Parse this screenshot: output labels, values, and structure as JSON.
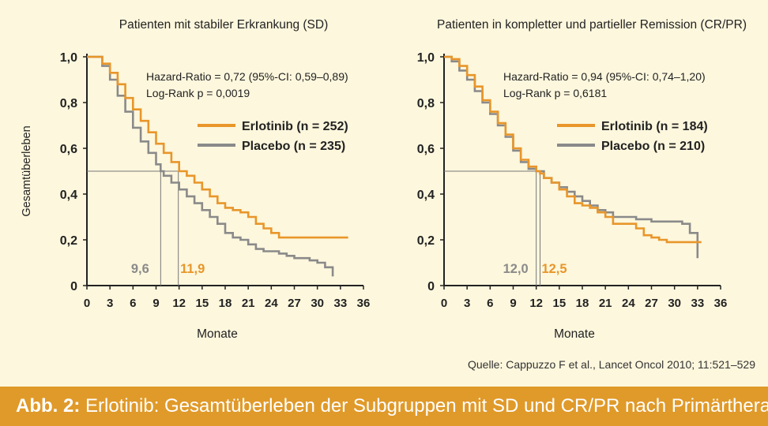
{
  "figure": {
    "caption_label": "Abb. 2:",
    "caption_text": "Erlotinib: Gesamtüberleben der Subgruppen mit SD und CR/PR nach Primärtherapie",
    "source": "Quelle: Cappuzzo F et al., Lancet Oncol 2010; 11:521–529"
  },
  "colors": {
    "erlotinib": "#e8962a",
    "placebo": "#8a8a8a",
    "caption_bg": "#e09a2a",
    "background": "#fdf7dd"
  },
  "chart_data": [
    {
      "type": "line",
      "title": "Patienten mit stabiler Erkrankung (SD)",
      "xlabel": "Monate",
      "ylabel": "Gesamtüberleben",
      "xlim": [
        0,
        36
      ],
      "ylim": [
        0,
        1.0
      ],
      "xticks": [
        "0",
        "3",
        "6",
        "9",
        "12",
        "15",
        "18",
        "21",
        "24",
        "27",
        "30",
        "33",
        "36"
      ],
      "yticks": [
        "0",
        "0,2",
        "0,4",
        "0,6",
        "0,8",
        "1,0"
      ],
      "annotations": [
        "Hazard-Ratio = 0,72 (95%-CI: 0,59–0,89)",
        "Log-Rank p = 0,0019"
      ],
      "legend_position": "top-right",
      "medians": [
        {
          "label": "9,6",
          "x": 9.6,
          "series": "placebo"
        },
        {
          "label": "11,9",
          "x": 11.9,
          "series": "erlotinib"
        }
      ],
      "series": [
        {
          "key": "erlotinib",
          "name": "Erlotinib (n = 252)",
          "points": [
            [
              0,
              1.0
            ],
            [
              1,
              1.0
            ],
            [
              2,
              0.97
            ],
            [
              3,
              0.93
            ],
            [
              4,
              0.88
            ],
            [
              5,
              0.82
            ],
            [
              6,
              0.77
            ],
            [
              7,
              0.72
            ],
            [
              8,
              0.67
            ],
            [
              9,
              0.62
            ],
            [
              10,
              0.58
            ],
            [
              11,
              0.54
            ],
            [
              12,
              0.5
            ],
            [
              13,
              0.48
            ],
            [
              14,
              0.45
            ],
            [
              15,
              0.42
            ],
            [
              16,
              0.39
            ],
            [
              17,
              0.36
            ],
            [
              18,
              0.34
            ],
            [
              19,
              0.33
            ],
            [
              20,
              0.32
            ],
            [
              21,
              0.3
            ],
            [
              22,
              0.27
            ],
            [
              23,
              0.25
            ],
            [
              24,
              0.23
            ],
            [
              25,
              0.21
            ],
            [
              26,
              0.21
            ],
            [
              30,
              0.21
            ],
            [
              34,
              0.21
            ]
          ]
        },
        {
          "key": "placebo",
          "name": "Placebo (n = 235)",
          "points": [
            [
              0,
              1.0
            ],
            [
              1,
              1.0
            ],
            [
              2,
              0.96
            ],
            [
              3,
              0.9
            ],
            [
              4,
              0.83
            ],
            [
              5,
              0.76
            ],
            [
              6,
              0.69
            ],
            [
              7,
              0.63
            ],
            [
              8,
              0.58
            ],
            [
              9,
              0.53
            ],
            [
              9.6,
              0.5
            ],
            [
              10,
              0.48
            ],
            [
              11,
              0.45
            ],
            [
              12,
              0.42
            ],
            [
              13,
              0.39
            ],
            [
              14,
              0.36
            ],
            [
              15,
              0.33
            ],
            [
              16,
              0.3
            ],
            [
              17,
              0.27
            ],
            [
              18,
              0.23
            ],
            [
              19,
              0.21
            ],
            [
              20,
              0.2
            ],
            [
              21,
              0.18
            ],
            [
              22,
              0.16
            ],
            [
              23,
              0.15
            ],
            [
              24,
              0.15
            ],
            [
              25,
              0.14
            ],
            [
              26,
              0.13
            ],
            [
              27,
              0.12
            ],
            [
              28,
              0.12
            ],
            [
              29,
              0.11
            ],
            [
              30,
              0.1
            ],
            [
              31,
              0.08
            ],
            [
              32,
              0.04
            ]
          ]
        }
      ]
    },
    {
      "type": "line",
      "title": "Patienten in kompletter und partieller Remission (CR/PR)",
      "xlabel": "Monate",
      "ylabel": "",
      "xlim": [
        0,
        36
      ],
      "ylim": [
        0,
        1.0
      ],
      "xticks": [
        "0",
        "3",
        "6",
        "9",
        "12",
        "15",
        "18",
        "21",
        "24",
        "27",
        "30",
        "33",
        "36"
      ],
      "yticks": [
        "0",
        "0,2",
        "0,4",
        "0,6",
        "0,8",
        "1,0"
      ],
      "annotations": [
        "Hazard-Ratio = 0,94 (95%-CI: 0,74–1,20)",
        "Log-Rank p = 0,6181"
      ],
      "legend_position": "top-right",
      "medians": [
        {
          "label": "12,0",
          "x": 12.0,
          "series": "placebo"
        },
        {
          "label": "12,5",
          "x": 12.5,
          "series": "erlotinib"
        }
      ],
      "series": [
        {
          "key": "erlotinib",
          "name": "Erlotinib (n = 184)",
          "points": [
            [
              0,
              1.0
            ],
            [
              1,
              0.99
            ],
            [
              2,
              0.96
            ],
            [
              3,
              0.92
            ],
            [
              4,
              0.87
            ],
            [
              5,
              0.81
            ],
            [
              6,
              0.76
            ],
            [
              7,
              0.71
            ],
            [
              8,
              0.66
            ],
            [
              9,
              0.6
            ],
            [
              10,
              0.55
            ],
            [
              11,
              0.52
            ],
            [
              12,
              0.5
            ],
            [
              12.5,
              0.49
            ],
            [
              13,
              0.47
            ],
            [
              14,
              0.45
            ],
            [
              15,
              0.42
            ],
            [
              16,
              0.39
            ],
            [
              17,
              0.36
            ],
            [
              18,
              0.35
            ],
            [
              19,
              0.34
            ],
            [
              20,
              0.32
            ],
            [
              21,
              0.3
            ],
            [
              22,
              0.27
            ],
            [
              24,
              0.27
            ],
            [
              25,
              0.25
            ],
            [
              26,
              0.22
            ],
            [
              27,
              0.21
            ],
            [
              28,
              0.2
            ],
            [
              29,
              0.19
            ],
            [
              30,
              0.19
            ],
            [
              33,
              0.19
            ],
            [
              33.5,
              0.19
            ]
          ]
        },
        {
          "key": "placebo",
          "name": "Placebo (n = 210)",
          "points": [
            [
              0,
              1.0
            ],
            [
              1,
              0.98
            ],
            [
              2,
              0.94
            ],
            [
              3,
              0.9
            ],
            [
              4,
              0.85
            ],
            [
              5,
              0.8
            ],
            [
              6,
              0.75
            ],
            [
              7,
              0.7
            ],
            [
              8,
              0.65
            ],
            [
              9,
              0.59
            ],
            [
              10,
              0.54
            ],
            [
              11,
              0.51
            ],
            [
              12,
              0.5
            ],
            [
              13,
              0.47
            ],
            [
              14,
              0.45
            ],
            [
              15,
              0.43
            ],
            [
              16,
              0.41
            ],
            [
              17,
              0.39
            ],
            [
              18,
              0.37
            ],
            [
              19,
              0.35
            ],
            [
              20,
              0.33
            ],
            [
              21,
              0.32
            ],
            [
              22,
              0.3
            ],
            [
              24,
              0.3
            ],
            [
              25,
              0.29
            ],
            [
              27,
              0.28
            ],
            [
              30,
              0.28
            ],
            [
              31,
              0.27
            ],
            [
              32,
              0.23
            ],
            [
              33,
              0.23
            ],
            [
              33,
              0.12
            ]
          ]
        }
      ]
    }
  ]
}
